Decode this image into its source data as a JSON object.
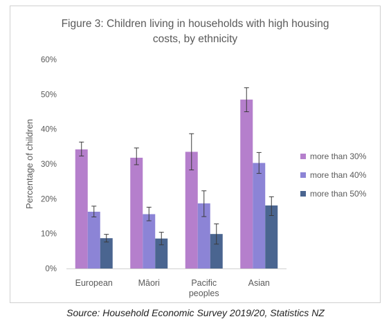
{
  "chart_data": {
    "type": "bar",
    "title": "Figure 3: Children living in households with high housing costs, by ethnicity",
    "title_lines": [
      "Figure 3: Children living in households with high housing",
      "costs, by ethnicity"
    ],
    "ylabel": "Percentage of children",
    "xlabel": "",
    "ylim": [
      0,
      60
    ],
    "yticks": [
      0,
      10,
      20,
      30,
      40,
      50,
      60
    ],
    "ytick_labels": [
      "0%",
      "10%",
      "20%",
      "30%",
      "40%",
      "50%",
      "60%"
    ],
    "categories": [
      "European",
      "Māori",
      "Pacific peoples",
      "Asian"
    ],
    "category_lines": [
      [
        "European"
      ],
      [
        "Māori"
      ],
      [
        "Pacific",
        "peoples"
      ],
      [
        "Asian"
      ]
    ],
    "grid": false,
    "legend_placement": "right",
    "series": [
      {
        "name": "more than 30%",
        "color": "#b57fcc",
        "values": [
          34.2,
          31.8,
          33.5,
          48.5
        ],
        "err_low": [
          32.3,
          29.8,
          28.3,
          45.0
        ],
        "err_high": [
          36.3,
          34.6,
          38.7,
          51.9
        ]
      },
      {
        "name": "more than 40%",
        "color": "#8c84d6",
        "values": [
          16.3,
          15.6,
          18.7,
          30.3
        ],
        "err_low": [
          14.8,
          13.7,
          14.9,
          27.3
        ],
        "err_high": [
          17.9,
          17.6,
          22.3,
          33.3
        ]
      },
      {
        "name": "more than 50%",
        "color": "#4a6590",
        "values": [
          8.7,
          8.6,
          9.9,
          18.1
        ],
        "err_low": [
          7.6,
          6.8,
          7.0,
          15.2
        ],
        "err_high": [
          9.8,
          10.4,
          12.8,
          20.6
        ]
      }
    ]
  },
  "source_note": "Source: Household Economic Survey 2019/20, Statistics NZ"
}
